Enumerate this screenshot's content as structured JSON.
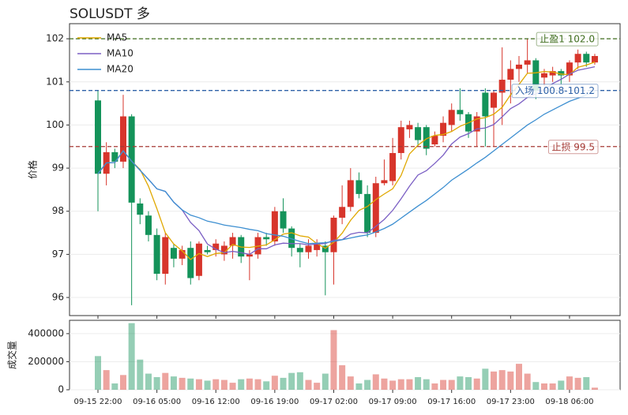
{
  "chart_data": {
    "type": "candlestick",
    "title": "SOLUSDT 多",
    "y_label": "价格",
    "y2_label": "成交量",
    "categories": [
      "09-15 22:00",
      null,
      null,
      null,
      null,
      null,
      null,
      "09-16 05:00",
      null,
      null,
      null,
      null,
      null,
      null,
      "09-16 12:00",
      null,
      null,
      null,
      null,
      null,
      null,
      "09-16 19:00",
      null,
      null,
      null,
      null,
      null,
      null,
      "09-17 02:00",
      null,
      null,
      null,
      null,
      null,
      null,
      "09-17 09:00",
      null,
      null,
      null,
      null,
      null,
      null,
      "09-17 16:00",
      null,
      null,
      null,
      null,
      null,
      null,
      "09-17 23:00",
      null,
      null,
      null,
      null,
      null,
      null,
      "09-18 06:00",
      null,
      null,
      null
    ],
    "open": [
      100.57,
      98.87,
      99.37,
      99.15,
      100.2,
      98.18,
      97.9,
      97.45,
      96.55,
      97.15,
      96.9,
      97.15,
      96.5,
      97.1,
      97.1,
      97.0,
      97.2,
      97.4,
      96.95,
      97.0,
      97.4,
      97.3,
      98.0,
      97.6,
      97.15,
      97.05,
      97.1,
      97.2,
      97.05,
      97.85,
      98.1,
      98.72,
      98.4,
      97.5,
      98.65,
      98.7,
      99.35,
      99.9,
      99.95,
      99.95,
      99.55,
      99.75,
      100.0,
      100.35,
      100.25,
      99.85,
      100.75,
      100.4,
      100.75,
      101.05,
      101.3,
      101.4,
      101.5,
      101.1,
      101.15,
      101.25,
      101.15,
      101.45,
      101.65,
      101.45
    ],
    "high": [
      100.8,
      99.6,
      99.45,
      100.7,
      100.25,
      98.3,
      98.0,
      97.6,
      97.5,
      97.25,
      97.2,
      97.3,
      97.3,
      97.2,
      97.35,
      97.3,
      97.5,
      97.45,
      97.1,
      97.5,
      97.5,
      98.1,
      98.3,
      97.65,
      97.25,
      97.35,
      97.35,
      97.3,
      97.9,
      98.6,
      99.0,
      98.9,
      98.6,
      98.8,
      99.2,
      99.7,
      100.1,
      100.1,
      100.05,
      100.0,
      99.85,
      100.2,
      100.5,
      100.85,
      100.3,
      100.3,
      100.85,
      100.8,
      101.8,
      101.5,
      101.6,
      102.0,
      101.55,
      101.3,
      101.35,
      101.3,
      101.5,
      101.75,
      101.7,
      101.65
    ],
    "low": [
      98.0,
      98.6,
      99.0,
      99.0,
      95.82,
      97.7,
      97.3,
      96.4,
      96.3,
      96.7,
      96.75,
      96.3,
      96.4,
      97.0,
      96.95,
      96.85,
      96.9,
      96.8,
      96.4,
      96.9,
      97.2,
      97.2,
      97.5,
      96.95,
      96.7,
      96.9,
      96.95,
      96.05,
      96.3,
      97.7,
      98.0,
      98.3,
      97.4,
      97.4,
      98.6,
      98.6,
      99.2,
      99.7,
      99.5,
      99.3,
      99.5,
      99.6,
      99.85,
      100.1,
      99.7,
      99.5,
      99.5,
      99.5,
      100.0,
      100.5,
      101.0,
      101.2,
      100.6,
      100.9,
      101.0,
      100.95,
      101.0,
      101.3,
      101.35,
      101.4
    ],
    "close": [
      98.87,
      99.37,
      99.15,
      100.2,
      98.2,
      97.92,
      97.45,
      96.55,
      97.4,
      96.9,
      97.1,
      96.45,
      97.25,
      97.05,
      97.25,
      97.2,
      97.4,
      96.95,
      97.0,
      97.4,
      97.35,
      98.0,
      97.6,
      97.15,
      97.05,
      97.2,
      97.25,
      97.05,
      97.85,
      98.1,
      98.72,
      98.4,
      97.5,
      98.65,
      98.72,
      99.35,
      99.95,
      100.0,
      99.65,
      99.45,
      99.75,
      100.05,
      100.35,
      100.25,
      99.85,
      100.2,
      100.2,
      100.75,
      101.05,
      101.3,
      101.4,
      101.5,
      100.8,
      101.2,
      101.25,
      101.15,
      101.45,
      101.65,
      101.45,
      101.6
    ],
    "volume": [
      240000,
      140000,
      45000,
      105000,
      475000,
      215000,
      115000,
      90000,
      120000,
      95000,
      85000,
      80000,
      75000,
      65000,
      75000,
      70000,
      50000,
      75000,
      80000,
      75000,
      60000,
      100000,
      85000,
      120000,
      125000,
      70000,
      50000,
      115000,
      425000,
      175000,
      95000,
      45000,
      70000,
      110000,
      80000,
      65000,
      75000,
      75000,
      90000,
      75000,
      45000,
      70000,
      70000,
      95000,
      90000,
      80000,
      150000,
      130000,
      140000,
      130000,
      185000,
      115000,
      55000,
      45000,
      45000,
      65000,
      95000,
      85000,
      90000,
      15000
    ],
    "up_color": "#d7352b",
    "down_color": "#14935a",
    "series": [
      {
        "name": "MA5",
        "color": "#e0a800",
        "values": [
          98.87,
          99.12,
          99.13,
          99.4,
          99.16,
          98.97,
          98.58,
          98.06,
          97.5,
          97.24,
          97.08,
          96.88,
          97.02,
          96.95,
          97.02,
          97.04,
          97.23,
          97.17,
          97.16,
          97.19,
          97.22,
          97.34,
          97.47,
          97.5,
          97.43,
          97.4,
          97.25,
          97.14,
          97.28,
          97.49,
          97.79,
          98.02,
          98.11,
          98.27,
          98.4,
          98.52,
          98.83,
          99.33,
          99.53,
          99.68,
          99.76,
          99.78,
          99.85,
          99.97,
          100.05,
          100.14,
          100.17,
          100.25,
          100.41,
          100.7,
          100.94,
          101.2,
          101.21,
          101.24,
          101.23,
          101.18,
          101.17,
          101.34,
          101.39,
          101.46
        ]
      },
      {
        "name": "MA10",
        "color": "#7b5fc4",
        "values": [
          98.87,
          99.12,
          99.13,
          99.4,
          99.16,
          98.95,
          98.74,
          98.52,
          98.46,
          98.21,
          98.03,
          97.74,
          97.55,
          97.24,
          97.12,
          97.04,
          97.07,
          97.04,
          97.0,
          97.13,
          97.13,
          97.22,
          97.26,
          97.25,
          97.25,
          97.22,
          97.24,
          97.25,
          97.33,
          97.34,
          97.47,
          97.51,
          97.5,
          97.65,
          97.81,
          98.02,
          98.29,
          98.58,
          98.84,
          98.94,
          99.11,
          99.3,
          99.56,
          99.72,
          99.8,
          99.91,
          99.93,
          100.01,
          100.19,
          100.38,
          100.49,
          100.64,
          100.72,
          100.82,
          100.96,
          101.06,
          101.18,
          101.27,
          101.31,
          101.35
        ]
      },
      {
        "name": "MA20",
        "color": "#3d8fd1",
        "values": [
          98.87,
          99.12,
          99.13,
          99.4,
          99.16,
          98.95,
          98.74,
          98.52,
          98.46,
          98.21,
          98.03,
          97.91,
          97.85,
          97.77,
          97.73,
          97.68,
          97.65,
          97.62,
          97.58,
          97.55,
          97.48,
          97.45,
          97.42,
          97.36,
          97.3,
          97.25,
          97.26,
          97.27,
          97.3,
          97.34,
          97.38,
          97.42,
          97.45,
          97.52,
          97.6,
          97.7,
          97.84,
          97.98,
          98.12,
          98.25,
          98.4,
          98.55,
          98.72,
          98.85,
          98.98,
          99.12,
          99.25,
          99.4,
          99.55,
          99.7,
          99.85,
          100.0,
          100.12,
          100.25,
          100.35,
          100.45,
          100.55,
          100.62,
          100.7,
          100.76
        ]
      }
    ],
    "levels": [
      {
        "label": "止盈1 102.0",
        "value": 102.0,
        "color": "#3f6e1e"
      },
      {
        "label": "入场 100.8-101.2",
        "value": 100.8,
        "color": "#2f62a8"
      },
      {
        "label": "止损 99.5",
        "value": 99.5,
        "color": "#a53a35"
      }
    ],
    "ylim": [
      95.58,
      102.35
    ],
    "yticks": [
      96,
      97,
      98,
      99,
      100,
      101,
      102
    ],
    "y2lim": [
      0,
      495000
    ],
    "y2ticks": [
      0,
      200000,
      400000
    ],
    "grid": true,
    "legend": "upper left"
  }
}
